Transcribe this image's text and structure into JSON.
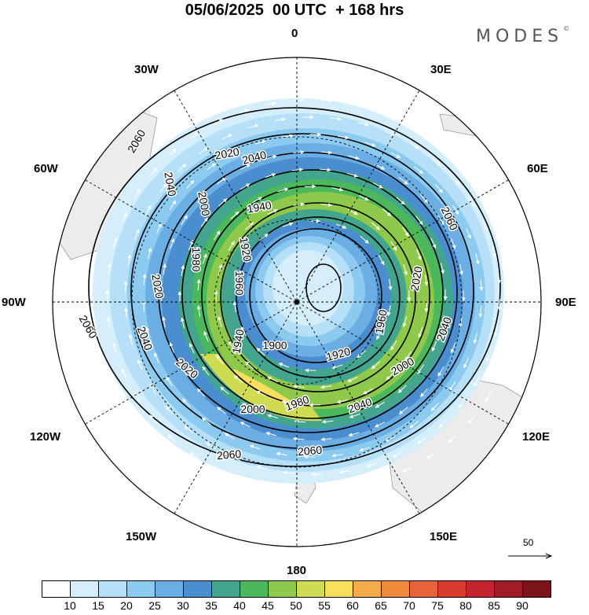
{
  "header": {
    "title": "05/06/2025  00 UTC  + 168 hrs",
    "brand": "MODES",
    "brand_mark": "©"
  },
  "map": {
    "projection": "polar-stereographic-southern-hemisphere",
    "ocean_color": "#ffffff",
    "land_color": "#ececec",
    "longitude_labels": [
      "0",
      "30E",
      "60E",
      "90E",
      "120E",
      "150E",
      "180",
      "150W",
      "120W",
      "90W",
      "60W",
      "30W"
    ],
    "contour_labels": [
      "2060",
      "2060",
      "2060",
      "2060",
      "2060",
      "2040",
      "2040",
      "2040",
      "2040",
      "2040",
      "2020",
      "2020",
      "2020",
      "2020",
      "2000",
      "2000",
      "2000",
      "1980",
      "1980",
      "1960",
      "1960",
      "1940",
      "1940",
      "1920",
      "1920",
      "1900"
    ],
    "wind_speed_levels": [
      10,
      15,
      20,
      25,
      30,
      35,
      40,
      45,
      50,
      55,
      60,
      65,
      70,
      75,
      80,
      85,
      90
    ],
    "wind_colors": [
      "#ffffff",
      "#d4eefb",
      "#b6e0f8",
      "#8ccaf0",
      "#6aaee4",
      "#4a8ed0",
      "#43a58e",
      "#4cb85c",
      "#8fc94c",
      "#cfdc52",
      "#f7de5c",
      "#f3ac48",
      "#ef8a3a",
      "#e8623a",
      "#db3a2e",
      "#c4242c",
      "#a01c24",
      "#7a1418"
    ],
    "reference_vector_label": "50"
  },
  "colorbar": {
    "colors": [
      "#ffffff",
      "#d4eefb",
      "#b6e0f8",
      "#8ccaf0",
      "#6aaee4",
      "#4a8ed0",
      "#43a58e",
      "#4cb85c",
      "#8fc94c",
      "#cfdc52",
      "#f7de5c",
      "#f3ac48",
      "#ef8a3a",
      "#e8623a",
      "#db3a2e",
      "#c4242c",
      "#a01c24",
      "#7a1418"
    ],
    "tick_labels": [
      "10",
      "15",
      "20",
      "25",
      "30",
      "35",
      "40",
      "45",
      "50",
      "55",
      "60",
      "65",
      "70",
      "75",
      "80",
      "85",
      "90"
    ]
  }
}
